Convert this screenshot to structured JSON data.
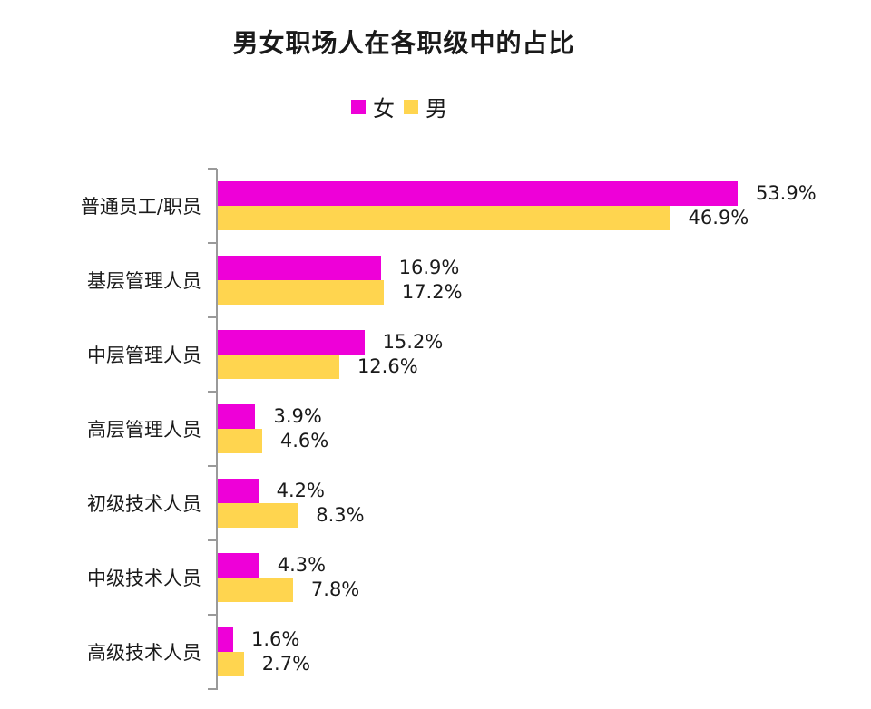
{
  "chart_data": {
    "type": "bar",
    "orientation": "horizontal",
    "title": "男女职场人在各职级中的占比",
    "xlabel": "",
    "ylabel": "",
    "legend_position": "top",
    "grid": false,
    "categories": [
      "普通员工/职员",
      "基层管理人员",
      "中层管理人员",
      "高层管理人员",
      "初级技术人员",
      "中级技术人员",
      "高级技术人员"
    ],
    "series": [
      {
        "name": "女",
        "color": "#EE00D8",
        "values": [
          53.9,
          16.9,
          15.2,
          3.9,
          4.2,
          4.3,
          1.6
        ],
        "labels": [
          "53.9%",
          "16.9%",
          "15.2%",
          "3.9%",
          "4.2%",
          "4.3%",
          "1.6%"
        ]
      },
      {
        "name": "男",
        "color": "#FFD54F",
        "values": [
          46.9,
          17.2,
          12.6,
          4.6,
          8.3,
          7.8,
          2.7
        ],
        "labels": [
          "46.9%",
          "17.2%",
          "12.6%",
          "4.6%",
          "8.3%",
          "7.8%",
          "2.7%"
        ]
      }
    ],
    "value_unit": "%"
  }
}
